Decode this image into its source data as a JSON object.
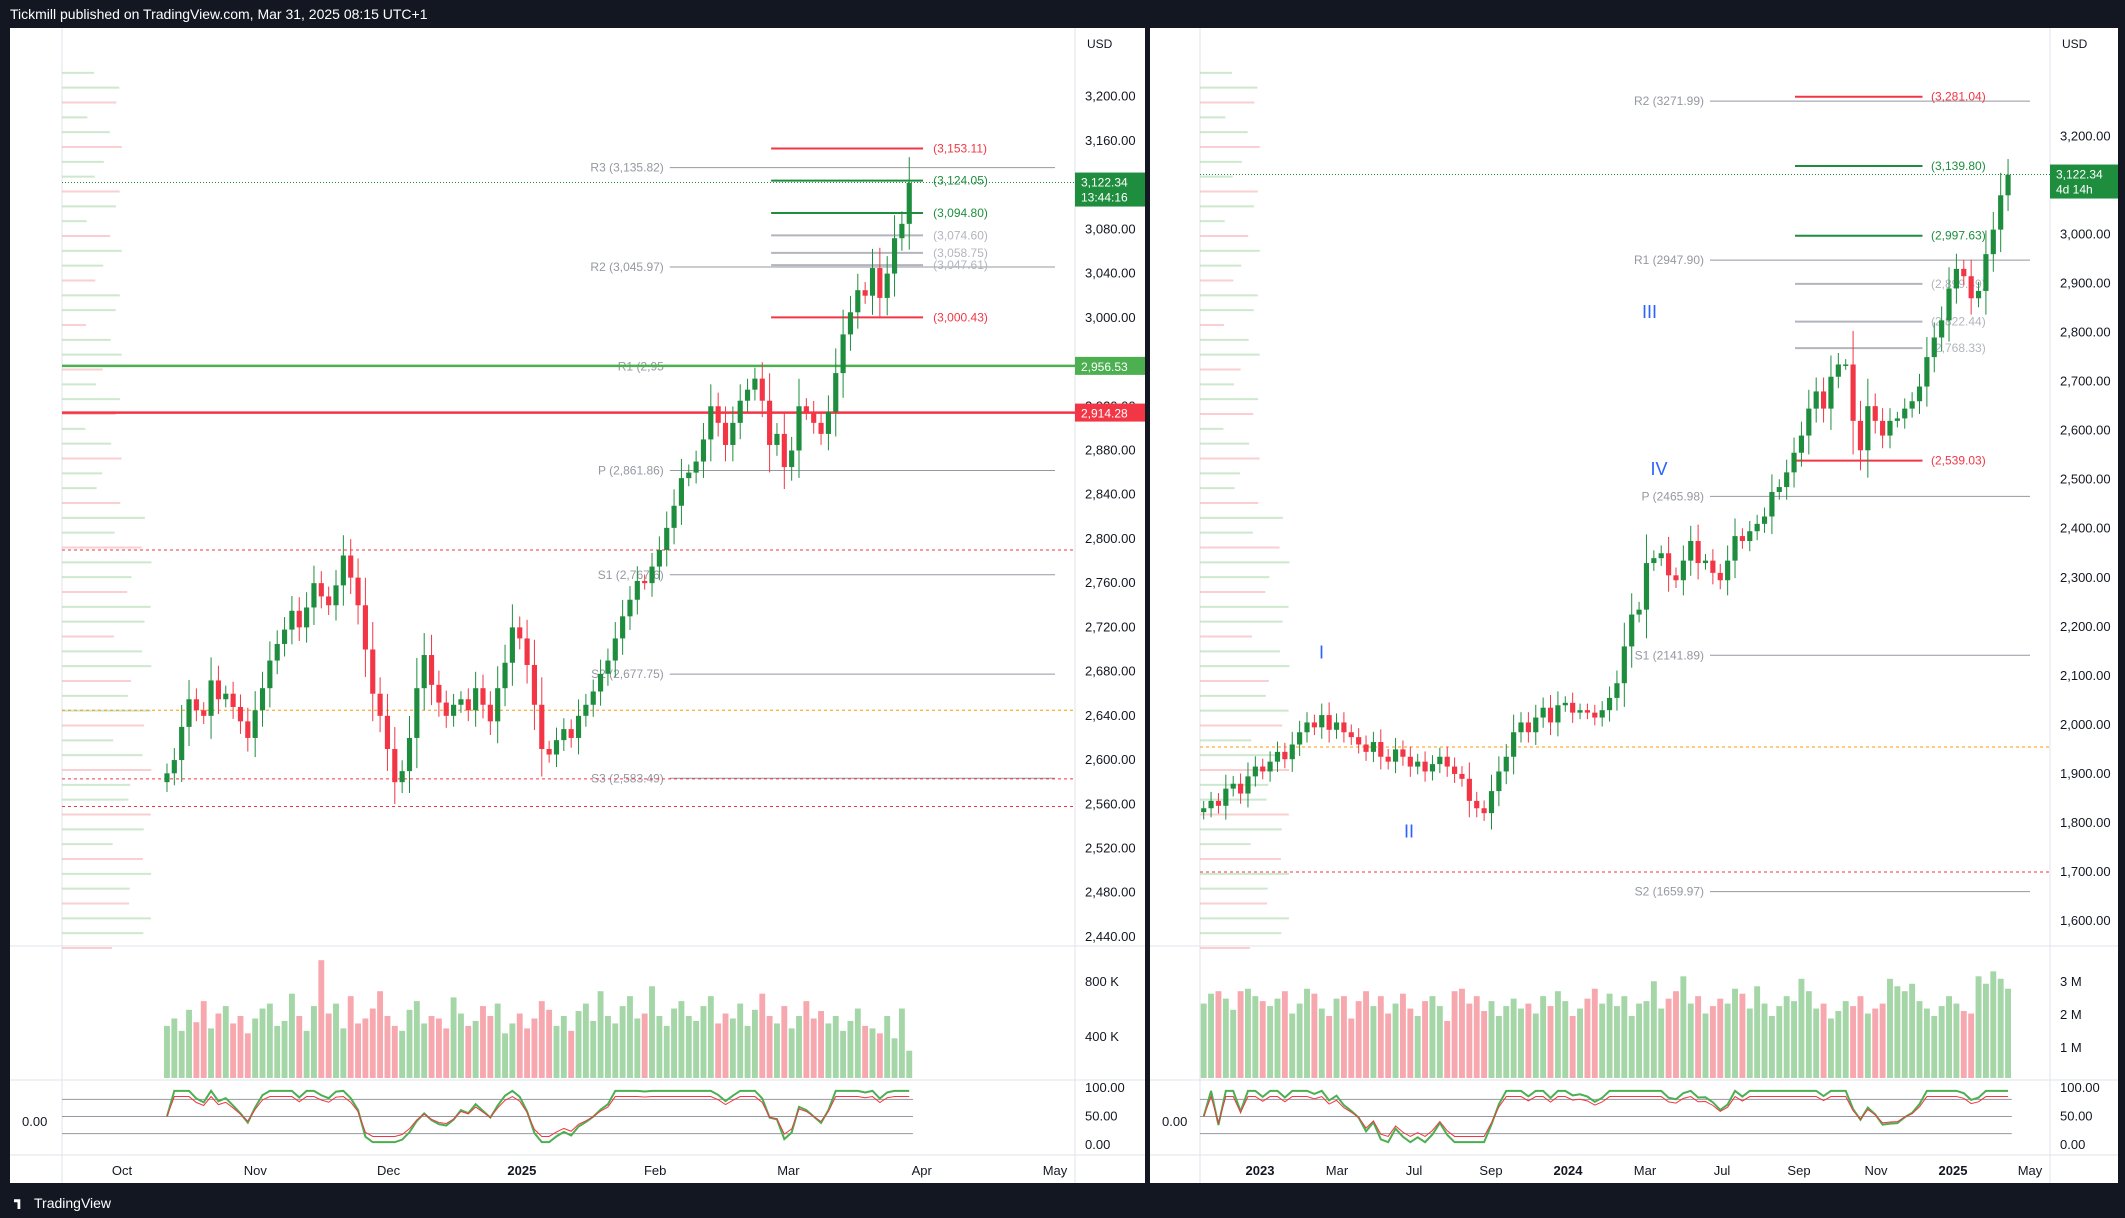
{
  "header": {
    "text": "Tickmill published on TradingView.com, Mar 31, 2025 08:15 UTC+1"
  },
  "footer": {
    "brand": "TradingView"
  },
  "chart_data": [
    {
      "id": "left",
      "type": "candlestick",
      "symbol": "XAUUSD",
      "timeframe": "1D",
      "currency": "USD",
      "ylim": [
        2430,
        3235
      ],
      "y_ticks": [
        "3,200.00",
        "3,160.00",
        "3,120.00",
        "3,080.00",
        "3,040.00",
        "3,000.00",
        "2,960.00",
        "2,920.00",
        "2,880.00",
        "2,840.00",
        "2,800.00",
        "2,760.00",
        "2,720.00",
        "2,680.00",
        "2,640.00",
        "2,600.00",
        "2,560.00",
        "2,520.00",
        "2,480.00",
        "2,440.00"
      ],
      "x_ticks": [
        "Oct",
        "Nov",
        "Dec",
        "2025",
        "Feb",
        "Mar",
        "Apr",
        "May"
      ],
      "x_bold": [
        "2025"
      ],
      "last_price": {
        "label": "3,122.34",
        "countdown": "13:44:16",
        "value": 3122.34
      },
      "hlines_axis": [
        {
          "label": "2,956.53",
          "value": 2956.53,
          "color": "#4caf50"
        },
        {
          "label": "2,914.28",
          "value": 2914.28,
          "color": "#f23645"
        }
      ],
      "pivots": [
        {
          "label": "R3 (3,135.82)",
          "value": 3135.82
        },
        {
          "label": "R2 (3,045.97)",
          "value": 3045.97
        },
        {
          "label": "R1 (2,95",
          "value": 2956
        },
        {
          "label": "P (2,861.86)",
          "value": 2861.86
        },
        {
          "label": "S1 (2,767.6)",
          "value": 2767.6
        },
        {
          "label": "S2 (2,677.75)",
          "value": 2677.75
        },
        {
          "label": "S3 (2,583.49)",
          "value": 2583.49
        }
      ],
      "targets": [
        {
          "label": "(3,153.11)",
          "value": 3153.11,
          "color": "#f23645"
        },
        {
          "label": "(3,124.05)",
          "value": 3124.05,
          "color": "#1e8e3e"
        },
        {
          "label": "(3,094.80)",
          "value": 3094.8,
          "color": "#1e8e3e"
        },
        {
          "label": "(3,074.60)",
          "value": 3074.6,
          "color": "#b2b5be"
        },
        {
          "label": "(3,058.75)",
          "value": 3058.75,
          "color": "#b2b5be"
        },
        {
          "label": "(3,047.61)",
          "value": 3047.61,
          "color": "#b2b5be"
        },
        {
          "label": "(3,000.43)",
          "value": 3000.43,
          "color": "#f23645"
        }
      ],
      "dotted_levels": [
        2790,
        2583,
        2558
      ],
      "orange_level": 2645,
      "volume_ticks": [
        "800 K",
        "400 K"
      ],
      "osc_ticks": [
        "100.00",
        "50.00",
        "0.00"
      ],
      "osc_left_label": "0.00",
      "closes": [
        2588,
        2600,
        2630,
        2655,
        2645,
        2640,
        2672,
        2655,
        2660,
        2648,
        2635,
        2620,
        2645,
        2665,
        2690,
        2705,
        2718,
        2735,
        2720,
        2738,
        2760,
        2748,
        2740,
        2758,
        2785,
        2765,
        2740,
        2700,
        2660,
        2640,
        2610,
        2580,
        2590,
        2620,
        2665,
        2695,
        2668,
        2652,
        2640,
        2650,
        2655,
        2645,
        2665,
        2650,
        2635,
        2665,
        2688,
        2720,
        2710,
        2686,
        2650,
        2610,
        2605,
        2618,
        2628,
        2620,
        2640,
        2650,
        2662,
        2678,
        2690,
        2710,
        2730,
        2745,
        2762,
        2760,
        2775,
        2790,
        2810,
        2830,
        2855,
        2860,
        2870,
        2890,
        2920,
        2905,
        2885,
        2905,
        2925,
        2935,
        2945,
        2925,
        2885,
        2895,
        2865,
        2880,
        2920,
        2915,
        2905,
        2895,
        2915,
        2950,
        2985,
        3005,
        3025,
        3020,
        3045,
        3018,
        3040,
        3072,
        3085,
        3122
      ],
      "vol_x_start": 0.1,
      "vol": [
        0.42,
        0.48,
        0.38,
        0.55,
        0.45,
        0.62,
        0.4,
        0.52,
        0.58,
        0.44,
        0.5,
        0.36,
        0.48,
        0.56,
        0.6,
        0.42,
        0.46,
        0.68,
        0.5,
        0.38,
        0.58,
        0.95,
        0.52,
        0.6,
        0.4,
        0.66,
        0.44,
        0.48,
        0.56,
        0.7,
        0.5,
        0.42,
        0.38,
        0.55,
        0.62,
        0.44,
        0.5,
        0.48,
        0.4,
        0.65,
        0.52,
        0.42,
        0.46,
        0.58,
        0.5,
        0.6,
        0.36,
        0.44,
        0.52,
        0.4,
        0.48,
        0.62,
        0.55,
        0.42,
        0.5,
        0.38,
        0.54,
        0.6,
        0.46,
        0.7,
        0.5,
        0.44,
        0.58,
        0.66,
        0.48,
        0.52,
        0.74,
        0.5,
        0.42,
        0.56,
        0.62,
        0.5,
        0.46,
        0.58,
        0.66,
        0.44,
        0.52,
        0.48,
        0.6,
        0.42,
        0.55,
        0.68,
        0.5,
        0.44,
        0.58,
        0.4,
        0.5,
        0.62,
        0.48,
        0.54,
        0.44,
        0.5,
        0.38,
        0.46,
        0.56,
        0.42,
        0.4,
        0.36,
        0.5,
        0.32,
        0.56,
        0.22
      ],
      "bar_region_end": 0.84
    },
    {
      "id": "right",
      "type": "candlestick",
      "symbol": "XAUUSD",
      "timeframe": "1W",
      "currency": "USD",
      "ylim": [
        1545,
        3360
      ],
      "y_ticks": [
        "3,200.00",
        "3,100.00",
        "3,000.00",
        "2,900.00",
        "2,800.00",
        "2,700.00",
        "2,600.00",
        "2,500.00",
        "2,400.00",
        "2,300.00",
        "2,200.00",
        "2,100.00",
        "2,000.00",
        "1,900.00",
        "1,800.00",
        "1,700.00",
        "1,600.00"
      ],
      "x_ticks": [
        "2023",
        "Mar",
        "Jul",
        "Sep",
        "2024",
        "Mar",
        "Jul",
        "Sep",
        "Nov",
        "2025",
        "May"
      ],
      "x_bold": [
        "2023",
        "2024",
        "2025"
      ],
      "last_price": {
        "label": "3,122.34",
        "countdown": "4d 14h",
        "value": 3122.34
      },
      "pivots": [
        {
          "label": "R2 (3271.99)",
          "value": 3271.99
        },
        {
          "label": "R1 (2947.90)",
          "value": 2947.9
        },
        {
          "label": "P (2465.98)",
          "value": 2465.98
        },
        {
          "label": "S1 (2141.89)",
          "value": 2141.89
        },
        {
          "label": "S2 (1659.97)",
          "value": 1659.97
        }
      ],
      "targets": [
        {
          "label": "(3,281.04)",
          "value": 3281.04,
          "color": "#f23645"
        },
        {
          "label": "(3,139.80)",
          "value": 3139.8,
          "color": "#1e8e3e"
        },
        {
          "label": "(2,997.63)",
          "value": 2997.63,
          "color": "#1e8e3e"
        },
        {
          "label": "(2,899.49)",
          "value": 2899.49,
          "color": "#b2b5be"
        },
        {
          "label": "(2,822.44)",
          "value": 2822.44,
          "color": "#b2b5be"
        },
        {
          "label": "(2,768.33)",
          "value": 2768.33,
          "color": "#b2b5be"
        },
        {
          "label": "(2,539.03)",
          "value": 2539.03,
          "color": "#f23645"
        }
      ],
      "waves": [
        {
          "label": "I",
          "value": 2135
        },
        {
          "label": "II",
          "value": 1770
        },
        {
          "label": "III",
          "value": 2830
        },
        {
          "label": "IV",
          "value": 2510
        }
      ],
      "dotted_levels": [
        1700
      ],
      "orange_level": 1955,
      "volume_ticks": [
        "3 M",
        "2 M",
        "1 M"
      ],
      "osc_ticks": [
        "100.00",
        "50.00",
        "0.00"
      ],
      "osc_left_label": "0.00",
      "closes": [
        1830,
        1845,
        1835,
        1870,
        1880,
        1860,
        1895,
        1915,
        1905,
        1925,
        1945,
        1930,
        1960,
        1985,
        2005,
        1995,
        2020,
        1990,
        2005,
        1985,
        1975,
        1960,
        1945,
        1965,
        1935,
        1925,
        1950,
        1935,
        1915,
        1925,
        1905,
        1920,
        1935,
        1915,
        1900,
        1890,
        1845,
        1830,
        1820,
        1865,
        1905,
        1935,
        1985,
        2005,
        1985,
        2015,
        2035,
        2005,
        2040,
        2045,
        2025,
        2030,
        2025,
        2015,
        2030,
        2055,
        2085,
        2160,
        2225,
        2235,
        2330,
        2340,
        2350,
        2305,
        2295,
        2335,
        2375,
        2330,
        2335,
        2310,
        2295,
        2335,
        2385,
        2375,
        2395,
        2410,
        2425,
        2475,
        2485,
        2515,
        2555,
        2590,
        2645,
        2680,
        2645,
        2710,
        2735,
        2735,
        2620,
        2560,
        2650,
        2620,
        2590,
        2620,
        2625,
        2645,
        2660,
        2690,
        2750,
        2790,
        2825,
        2890,
        2930,
        2915,
        2870,
        2885,
        2960,
        3010,
        3080,
        3122
      ],
      "vol_x_start": 0.0,
      "vol": [
        0.6,
        0.68,
        0.7,
        0.64,
        0.55,
        0.7,
        0.72,
        0.66,
        0.62,
        0.58,
        0.64,
        0.7,
        0.52,
        0.6,
        0.72,
        0.68,
        0.56,
        0.5,
        0.64,
        0.66,
        0.48,
        0.62,
        0.7,
        0.58,
        0.66,
        0.52,
        0.6,
        0.68,
        0.56,
        0.5,
        0.62,
        0.66,
        0.58,
        0.46,
        0.7,
        0.72,
        0.6,
        0.66,
        0.54,
        0.62,
        0.5,
        0.58,
        0.64,
        0.56,
        0.6,
        0.52,
        0.66,
        0.58,
        0.7,
        0.62,
        0.5,
        0.56,
        0.64,
        0.72,
        0.6,
        0.68,
        0.58,
        0.66,
        0.5,
        0.6,
        0.62,
        0.78,
        0.56,
        0.64,
        0.7,
        0.82,
        0.6,
        0.66,
        0.52,
        0.58,
        0.64,
        0.6,
        0.72,
        0.68,
        0.56,
        0.74,
        0.6,
        0.5,
        0.58,
        0.66,
        0.62,
        0.8,
        0.7,
        0.56,
        0.6,
        0.48,
        0.54,
        0.62,
        0.58,
        0.66,
        0.52,
        0.56,
        0.6,
        0.8,
        0.74,
        0.7,
        0.76,
        0.62,
        0.56,
        0.5,
        0.58,
        0.66,
        0.6,
        0.54,
        0.52,
        0.82,
        0.76,
        0.86,
        0.8,
        0.72
      ],
      "bar_region_end": 0.955
    }
  ]
}
